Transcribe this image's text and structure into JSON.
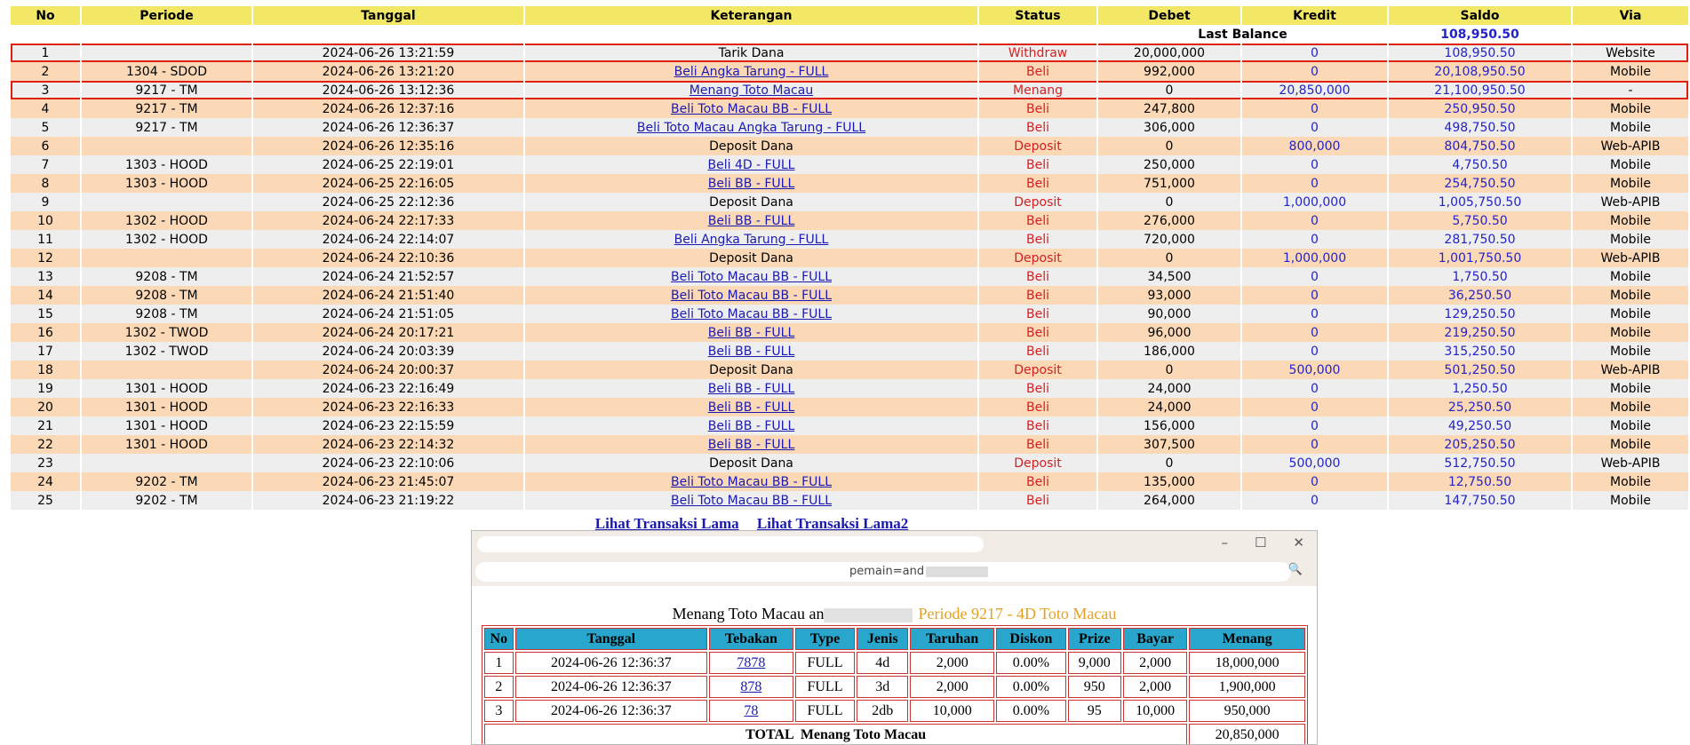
{
  "main_table": {
    "columns": [
      "No",
      "Periode",
      "Tanggal",
      "Keterangan",
      "Status",
      "Debet",
      "Kredit",
      "Saldo",
      "Via"
    ],
    "last_balance_label": "Last Balance",
    "last_balance": "108,950.50",
    "rows": [
      {
        "cells": [
          "1",
          null,
          "2024-06-26 13:21:59",
          "Tarik Dana",
          "Withdraw",
          "20,000,000",
          "0",
          "108,950.50",
          "Website"
        ]
      },
      {
        "cells": [
          "2",
          "1304 - SDOD",
          "2024-06-26 13:21:20",
          "Beli Angka Tarung - FULL",
          "Beli",
          "992,000",
          "0",
          "20,108,950.50",
          "Mobile"
        ],
        "link": true
      },
      {
        "cells": [
          "3",
          "9217 - TM",
          "2024-06-26 13:12:36",
          "Menang Toto Macau",
          "Menang",
          "0",
          "20,850,000",
          "21,100,950.50",
          "-"
        ],
        "link": true
      },
      {
        "cells": [
          "4",
          "9217 - TM",
          "2024-06-26 12:37:16",
          "Beli Toto Macau BB - FULL",
          "Beli",
          "247,800",
          "0",
          "250,950.50",
          "Mobile"
        ],
        "link": true
      },
      {
        "cells": [
          "5",
          "9217 - TM",
          "2024-06-26 12:36:37",
          "Beli Toto Macau Angka Tarung - FULL",
          "Beli",
          "306,000",
          "0",
          "498,750.50",
          "Mobile"
        ],
        "link": true
      },
      {
        "cells": [
          "6",
          null,
          "2024-06-26 12:35:16",
          "Deposit Dana",
          "Deposit",
          "0",
          "800,000",
          "804,750.50",
          "Web-APIB"
        ]
      },
      {
        "cells": [
          "7",
          "1303 - HOOD",
          "2024-06-25 22:19:01",
          "Beli 4D - FULL",
          "Beli",
          "250,000",
          "0",
          "4,750.50",
          "Mobile"
        ],
        "link": true
      },
      {
        "cells": [
          "8",
          "1303 - HOOD",
          "2024-06-25 22:16:05",
          "Beli BB - FULL",
          "Beli",
          "751,000",
          "0",
          "254,750.50",
          "Mobile"
        ],
        "link": true
      },
      {
        "cells": [
          "9",
          null,
          "2024-06-25 22:12:36",
          "Deposit Dana",
          "Deposit",
          "0",
          "1,000,000",
          "1,005,750.50",
          "Web-APIB"
        ]
      },
      {
        "cells": [
          "10",
          "1302 - HOOD",
          "2024-06-24 22:17:33",
          "Beli BB - FULL",
          "Beli",
          "276,000",
          "0",
          "5,750.50",
          "Mobile"
        ],
        "link": true
      },
      {
        "cells": [
          "11",
          "1302 - HOOD",
          "2024-06-24 22:14:07",
          "Beli Angka Tarung - FULL",
          "Beli",
          "720,000",
          "0",
          "281,750.50",
          "Mobile"
        ],
        "link": true
      },
      {
        "cells": [
          "12",
          null,
          "2024-06-24 22:10:36",
          "Deposit Dana",
          "Deposit",
          "0",
          "1,000,000",
          "1,001,750.50",
          "Web-APIB"
        ]
      },
      {
        "cells": [
          "13",
          "9208 - TM",
          "2024-06-24 21:52:57",
          "Beli Toto Macau BB - FULL",
          "Beli",
          "34,500",
          "0",
          "1,750.50",
          "Mobile"
        ],
        "link": true
      },
      {
        "cells": [
          "14",
          "9208 - TM",
          "2024-06-24 21:51:40",
          "Beli Toto Macau BB - FULL",
          "Beli",
          "93,000",
          "0",
          "36,250.50",
          "Mobile"
        ],
        "link": true
      },
      {
        "cells": [
          "15",
          "9208 - TM",
          "2024-06-24 21:51:05",
          "Beli Toto Macau BB - FULL",
          "Beli",
          "90,000",
          "0",
          "129,250.50",
          "Mobile"
        ],
        "link": true
      },
      {
        "cells": [
          "16",
          "1302 - TWOD",
          "2024-06-24 20:17:21",
          "Beli BB - FULL",
          "Beli",
          "96,000",
          "0",
          "219,250.50",
          "Mobile"
        ],
        "link": true
      },
      {
        "cells": [
          "17",
          "1302 - TWOD",
          "2024-06-24 20:03:39",
          "Beli BB - FULL",
          "Beli",
          "186,000",
          "0",
          "315,250.50",
          "Mobile"
        ],
        "link": true
      },
      {
        "cells": [
          "18",
          null,
          "2024-06-24 20:00:37",
          "Deposit Dana",
          "Deposit",
          "0",
          "500,000",
          "501,250.50",
          "Web-APIB"
        ]
      },
      {
        "cells": [
          "19",
          "1301 - HOOD",
          "2024-06-23 22:16:49",
          "Beli BB - FULL",
          "Beli",
          "24,000",
          "0",
          "1,250.50",
          "Mobile"
        ],
        "link": true
      },
      {
        "cells": [
          "20",
          "1301 - HOOD",
          "2024-06-23 22:16:33",
          "Beli BB - FULL",
          "Beli",
          "24,000",
          "0",
          "25,250.50",
          "Mobile"
        ],
        "link": true
      },
      {
        "cells": [
          "21",
          "1301 - HOOD",
          "2024-06-23 22:15:59",
          "Beli BB - FULL",
          "Beli",
          "156,000",
          "0",
          "49,250.50",
          "Mobile"
        ],
        "link": true
      },
      {
        "cells": [
          "22",
          "1301 - HOOD",
          "2024-06-23 22:14:32",
          "Beli BB - FULL",
          "Beli",
          "307,500",
          "0",
          "205,250.50",
          "Mobile"
        ],
        "link": true
      },
      {
        "cells": [
          "23",
          null,
          "2024-06-23 22:10:06",
          "Deposit Dana",
          "Deposit",
          "0",
          "500,000",
          "512,750.50",
          "Web-APIB"
        ]
      },
      {
        "cells": [
          "24",
          "9202 - TM",
          "2024-06-23 21:45:07",
          "Beli Toto Macau BB - FULL",
          "Beli",
          "135,000",
          "0",
          "12,750.50",
          "Mobile"
        ],
        "link": true
      },
      {
        "cells": [
          "25",
          "9202 - TM",
          "2024-06-23 21:19:22",
          "Beli Toto Macau BB - FULL",
          "Beli",
          "264,000",
          "0",
          "147,750.50",
          "Mobile"
        ],
        "link": true
      }
    ]
  },
  "links": [
    "Lihat Transaksi Lama",
    "Lihat Transaksi Lama2"
  ],
  "popup": {
    "address": "pemain=and",
    "heading": "Menang Toto Macau an",
    "heading_period": "Periode 9217 - 4D Toto Macau",
    "columns": [
      "No",
      "Tanggal",
      "Tebakan",
      "Type",
      "Jenis",
      "Taruhan",
      "Diskon",
      "Prize",
      "Bayar",
      "Menang"
    ],
    "rows": [
      [
        "1",
        "2024-06-26 12:36:37",
        "7878",
        "FULL",
        "4d",
        "2,000",
        "0.00%",
        "9,000",
        "2,000",
        "18,000,000"
      ],
      [
        "2",
        "2024-06-26 12:36:37",
        "878",
        "FULL",
        "3d",
        "2,000",
        "0.00%",
        "950",
        "2,000",
        "1,900,000"
      ],
      [
        "3",
        "2024-06-26 12:36:37",
        "78",
        "FULL",
        "2db",
        "10,000",
        "0.00%",
        "95",
        "10,000",
        "950,000"
      ]
    ],
    "total_label": "TOTAL  Menang Toto Macau",
    "total": "20,850,000"
  }
}
